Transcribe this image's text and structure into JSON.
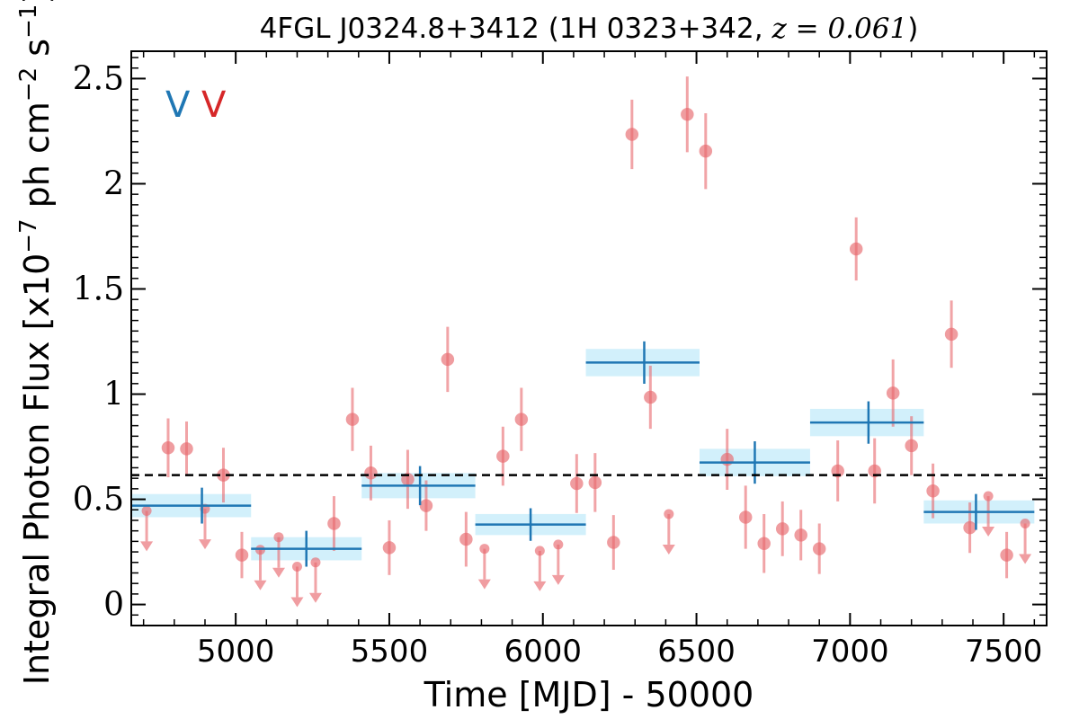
{
  "chart_data": {
    "type": "scatter",
    "title": "4FGL J0324.8+3412 (1H 0323+342, ",
    "title_math": "z = 0.061",
    "title_suffix": ")",
    "xlabel": "Time [MJD] - 50000",
    "ylabel": "Integral Photon Flux [x10",
    "ylabel_exp": "−7",
    "ylabel_mid": " ph cm",
    "ylabel_exp2": "−2",
    "ylabel_mid2": " s",
    "ylabel_exp3": "−1",
    "ylabel_end": "]",
    "xlim": [
      4660,
      7640
    ],
    "ylim": [
      -0.1,
      2.63
    ],
    "x_ticks": [
      5000,
      5500,
      6000,
      6500,
      7000,
      7500
    ],
    "x_tick_labels": [
      "5000",
      "5500",
      "6000",
      "6500",
      "7000",
      "7500"
    ],
    "y_ticks": [
      0,
      0.5,
      1,
      1.5,
      2,
      2.5
    ],
    "y_tick_labels": [
      "0",
      "0.5",
      "1",
      "1.5",
      "2",
      "2.5"
    ],
    "grid": false,
    "mean_flux": 0.615,
    "markers": [
      {
        "label": "V",
        "color": "#1f77b4"
      },
      {
        "label": "V",
        "color": "#d62728"
      }
    ],
    "colors": {
      "points": "#e8696e",
      "bins": "#1f77b4",
      "bin_band": "#cdeefb",
      "mean_line": "#000000"
    },
    "points": [
      {
        "x": 4780,
        "y": 0.745,
        "err": 0.14
      },
      {
        "x": 4840,
        "y": 0.74,
        "err": 0.13
      },
      {
        "x": 4960,
        "y": 0.615,
        "err": 0.13
      },
      {
        "x": 5020,
        "y": 0.235,
        "err": 0.11
      },
      {
        "x": 5320,
        "y": 0.385,
        "err": 0.13
      },
      {
        "x": 5380,
        "y": 0.88,
        "err": 0.15
      },
      {
        "x": 5440,
        "y": 0.625,
        "err": 0.13
      },
      {
        "x": 5500,
        "y": 0.27,
        "err": 0.13
      },
      {
        "x": 5560,
        "y": 0.595,
        "err": 0.14
      },
      {
        "x": 5620,
        "y": 0.47,
        "err": 0.12
      },
      {
        "x": 5690,
        "y": 1.165,
        "err": 0.155
      },
      {
        "x": 5750,
        "y": 0.31,
        "err": 0.13
      },
      {
        "x": 5870,
        "y": 0.705,
        "err": 0.14
      },
      {
        "x": 5930,
        "y": 0.88,
        "err": 0.15
      },
      {
        "x": 6110,
        "y": 0.575,
        "err": 0.14
      },
      {
        "x": 6170,
        "y": 0.58,
        "err": 0.14
      },
      {
        "x": 6230,
        "y": 0.295,
        "err": 0.13
      },
      {
        "x": 6290,
        "y": 2.235,
        "err": 0.165
      },
      {
        "x": 6350,
        "y": 0.985,
        "err": 0.15
      },
      {
        "x": 6470,
        "y": 2.33,
        "err": 0.18
      },
      {
        "x": 6530,
        "y": 2.155,
        "err": 0.18
      },
      {
        "x": 6600,
        "y": 0.69,
        "err": 0.145
      },
      {
        "x": 6660,
        "y": 0.415,
        "err": 0.15
      },
      {
        "x": 6720,
        "y": 0.29,
        "err": 0.14
      },
      {
        "x": 6780,
        "y": 0.36,
        "err": 0.13
      },
      {
        "x": 6840,
        "y": 0.33,
        "err": 0.12
      },
      {
        "x": 6900,
        "y": 0.265,
        "err": 0.12
      },
      {
        "x": 6960,
        "y": 0.635,
        "err": 0.145
      },
      {
        "x": 7020,
        "y": 1.69,
        "err": 0.15
      },
      {
        "x": 7080,
        "y": 0.635,
        "err": 0.155
      },
      {
        "x": 7140,
        "y": 1.005,
        "err": 0.16
      },
      {
        "x": 7200,
        "y": 0.755,
        "err": 0.14
      },
      {
        "x": 7270,
        "y": 0.54,
        "err": 0.13
      },
      {
        "x": 7330,
        "y": 1.285,
        "err": 0.16
      },
      {
        "x": 7390,
        "y": 0.365,
        "err": 0.12
      },
      {
        "x": 7510,
        "y": 0.235,
        "err": 0.11
      }
    ],
    "upper_limits": [
      {
        "x": 4710,
        "y": 0.445
      },
      {
        "x": 4900,
        "y": 0.455
      },
      {
        "x": 5080,
        "y": 0.26
      },
      {
        "x": 5140,
        "y": 0.32
      },
      {
        "x": 5200,
        "y": 0.18
      },
      {
        "x": 5260,
        "y": 0.2
      },
      {
        "x": 5810,
        "y": 0.265
      },
      {
        "x": 5990,
        "y": 0.255
      },
      {
        "x": 6050,
        "y": 0.285
      },
      {
        "x": 6410,
        "y": 0.43
      },
      {
        "x": 7450,
        "y": 0.515
      },
      {
        "x": 7570,
        "y": 0.385
      }
    ],
    "bins": [
      {
        "x0": 4650,
        "x1": 5050,
        "xc": 4890,
        "y": 0.47,
        "err": 0.055
      },
      {
        "x0": 5050,
        "x1": 5410,
        "xc": 5230,
        "y": 0.265,
        "err": 0.055
      },
      {
        "x0": 5410,
        "x1": 5780,
        "xc": 5600,
        "y": 0.565,
        "err": 0.06
      },
      {
        "x0": 5780,
        "x1": 6140,
        "xc": 5960,
        "y": 0.38,
        "err": 0.05
      },
      {
        "x0": 6140,
        "x1": 6510,
        "xc": 6330,
        "y": 1.15,
        "err": 0.065
      },
      {
        "x0": 6510,
        "x1": 6870,
        "xc": 6690,
        "y": 0.675,
        "err": 0.065
      },
      {
        "x0": 6870,
        "x1": 7240,
        "xc": 7060,
        "y": 0.865,
        "err": 0.065
      },
      {
        "x0": 7240,
        "x1": 7600,
        "xc": 7410,
        "y": 0.44,
        "err": 0.055
      }
    ]
  }
}
